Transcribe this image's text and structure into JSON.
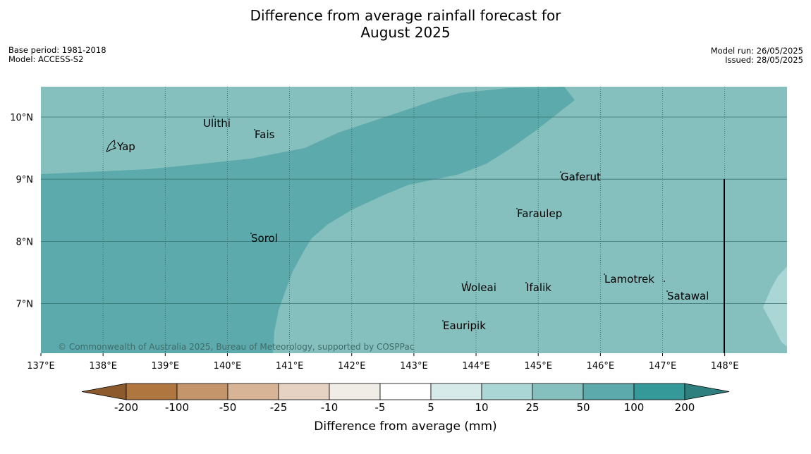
{
  "title": {
    "line1": "Difference from average rainfall forecast for",
    "line2": "August 2025"
  },
  "meta_left": {
    "base_period": "Base period: 1981-2018",
    "model": "Model: ACCESS-S2"
  },
  "meta_right": {
    "model_run": "Model run: 26/05/2025",
    "issued": "Issued: 28/05/2025"
  },
  "map": {
    "longitude_ticks": [
      "137°E",
      "138°E",
      "139°E",
      "140°E",
      "141°E",
      "142°E",
      "143°E",
      "144°E",
      "145°E",
      "146°E",
      "147°E",
      "148°E"
    ],
    "latitude_ticks": [
      "10°N",
      "9°N",
      "8°N",
      "7°N"
    ],
    "places": [
      {
        "name": "Yap"
      },
      {
        "name": "Ulithi"
      },
      {
        "name": "Fais"
      },
      {
        "name": "Gaferut"
      },
      {
        "name": "Faraulep"
      },
      {
        "name": "Sorol"
      },
      {
        "name": "Lamotrek"
      },
      {
        "name": "Woleai"
      },
      {
        "name": "Ifalik"
      },
      {
        "name": "Satawal"
      },
      {
        "name": "Eauripik"
      }
    ],
    "copyright": "© Commonwealth of Australia 2025, Bureau of Meteorology, supported by COSPPac",
    "category_colors": {
      "10_to_25": "#aad6d5",
      "25_to_50": "#85c0be",
      "50_to_100": "#5caaab"
    }
  },
  "legend": {
    "tick_labels": [
      "-200",
      "-100",
      "-50",
      "-25",
      "-10",
      "-5",
      "5",
      "10",
      "25",
      "50",
      "100",
      "200"
    ],
    "colors": [
      "#8c5a2c",
      "#b07640",
      "#c4946a",
      "#d7b495",
      "#e5d2c2",
      "#f0ece6",
      "#ffffff",
      "#d6eae9",
      "#aad6d5",
      "#85c0be",
      "#5caaab",
      "#35999a",
      "#2e7f7e"
    ],
    "label": "Difference from average (mm)"
  }
}
